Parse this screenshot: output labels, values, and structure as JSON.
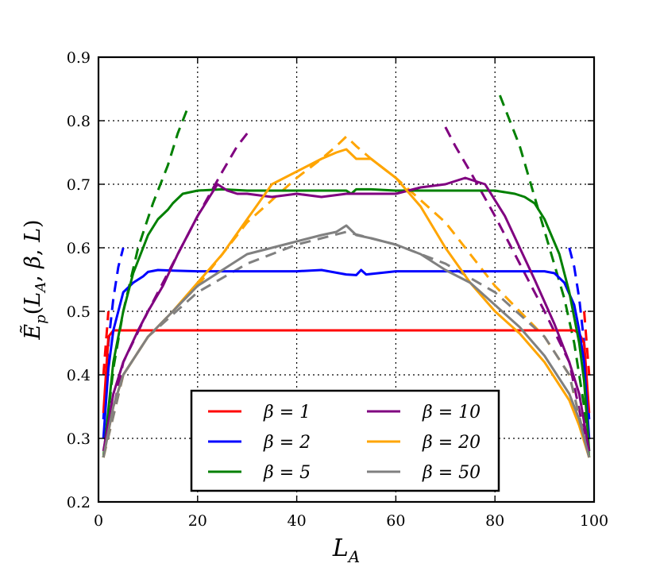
{
  "chart_data": {
    "type": "line",
    "title": "",
    "xlabel": "L_A",
    "ylabel": "Ẽ_p(L_A, β, L)",
    "xlim": [
      0,
      100
    ],
    "ylim": [
      0.2,
      0.9
    ],
    "x_ticks": [
      "0",
      "20",
      "40",
      "60",
      "80",
      "100"
    ],
    "y_ticks": [
      "0.2",
      "0.3",
      "0.4",
      "0.5",
      "0.6",
      "0.7",
      "0.8",
      "0.9"
    ],
    "grid": true,
    "legend_position": "bottom-center",
    "series": [
      {
        "name": "β = 1",
        "color": "#ff0000",
        "x": [
          1,
          2,
          3,
          4,
          6,
          10,
          20,
          30,
          40,
          50,
          60,
          70,
          80,
          90,
          94,
          96,
          97,
          98,
          99
        ],
        "values": [
          0.34,
          0.46,
          0.47,
          0.47,
          0.47,
          0.47,
          0.47,
          0.47,
          0.47,
          0.47,
          0.47,
          0.47,
          0.47,
          0.47,
          0.47,
          0.47,
          0.465,
          0.45,
          0.34
        ]
      },
      {
        "name": "β = 2",
        "color": "#0000ff",
        "x": [
          1,
          2,
          3,
          5,
          7,
          9,
          10,
          12,
          15,
          20,
          30,
          40,
          45,
          50,
          52,
          53,
          54,
          60,
          70,
          80,
          90,
          92,
          94,
          96,
          97,
          98,
          99
        ],
        "values": [
          0.3,
          0.41,
          0.47,
          0.53,
          0.545,
          0.555,
          0.562,
          0.565,
          0.564,
          0.563,
          0.563,
          0.563,
          0.565,
          0.558,
          0.557,
          0.565,
          0.558,
          0.563,
          0.563,
          0.563,
          0.563,
          0.56,
          0.545,
          0.51,
          0.47,
          0.42,
          0.3
        ]
      },
      {
        "name": "β = 5",
        "color": "#008000",
        "x": [
          1,
          3,
          5,
          7,
          9,
          10,
          12,
          14,
          15,
          17,
          20,
          25,
          30,
          40,
          45,
          50,
          51,
          52,
          55,
          60,
          70,
          80,
          84,
          86,
          88,
          90,
          93,
          95,
          97,
          98,
          99
        ],
        "values": [
          0.27,
          0.42,
          0.5,
          0.56,
          0.6,
          0.62,
          0.645,
          0.66,
          0.67,
          0.685,
          0.69,
          0.692,
          0.69,
          0.69,
          0.69,
          0.69,
          0.685,
          0.692,
          0.692,
          0.69,
          0.69,
          0.69,
          0.685,
          0.68,
          0.67,
          0.645,
          0.59,
          0.53,
          0.45,
          0.39,
          0.28
        ]
      },
      {
        "name": "β = 10",
        "color": "#800080",
        "x": [
          1,
          3,
          5,
          8,
          10,
          13,
          16,
          20,
          22,
          24,
          26,
          28,
          30,
          35,
          40,
          45,
          50,
          55,
          60,
          65,
          70,
          72,
          74,
          76,
          78,
          80,
          82,
          85,
          88,
          92,
          95,
          97,
          99
        ],
        "values": [
          0.28,
          0.37,
          0.42,
          0.47,
          0.5,
          0.54,
          0.59,
          0.65,
          0.675,
          0.7,
          0.69,
          0.685,
          0.685,
          0.68,
          0.685,
          0.68,
          0.685,
          0.685,
          0.685,
          0.695,
          0.7,
          0.705,
          0.71,
          0.705,
          0.7,
          0.675,
          0.65,
          0.6,
          0.55,
          0.48,
          0.42,
          0.37,
          0.28
        ]
      },
      {
        "name": "β = 20",
        "color": "#ffa500",
        "x": [
          1,
          3,
          5,
          10,
          15,
          20,
          25,
          30,
          35,
          40,
          45,
          48,
          50,
          52,
          55,
          60,
          65,
          70,
          75,
          80,
          85,
          90,
          95,
          97,
          99
        ],
        "values": [
          0.27,
          0.35,
          0.4,
          0.46,
          0.5,
          0.545,
          0.59,
          0.645,
          0.7,
          0.72,
          0.74,
          0.75,
          0.755,
          0.74,
          0.74,
          0.71,
          0.665,
          0.6,
          0.545,
          0.5,
          0.465,
          0.42,
          0.36,
          0.32,
          0.27
        ]
      },
      {
        "name": "β = 50",
        "color": "#808080",
        "x": [
          1,
          3,
          5,
          10,
          15,
          20,
          25,
          30,
          35,
          40,
          45,
          48,
          50,
          52,
          55,
          60,
          65,
          70,
          75,
          80,
          85,
          90,
          95,
          97,
          99
        ],
        "values": [
          0.27,
          0.35,
          0.4,
          0.46,
          0.5,
          0.54,
          0.565,
          0.59,
          0.6,
          0.61,
          0.62,
          0.625,
          0.635,
          0.62,
          0.615,
          0.605,
          0.59,
          0.565,
          0.545,
          0.51,
          0.475,
          0.43,
          0.37,
          0.33,
          0.27
        ]
      }
    ],
    "dashed_series": [
      {
        "name": "β = 1 fit",
        "color": "#ff0000",
        "segments": [
          {
            "x": [
              1,
              2
            ],
            "values": [
              0.4,
              0.5
            ]
          },
          {
            "x": [
              98,
              99
            ],
            "values": [
              0.5,
              0.4
            ]
          }
        ]
      },
      {
        "name": "β = 2 fit",
        "color": "#0000ff",
        "segments": [
          {
            "x": [
              1,
              2,
              3,
              4,
              5
            ],
            "values": [
              0.33,
              0.45,
              0.52,
              0.57,
              0.6
            ]
          },
          {
            "x": [
              95,
              96,
              97,
              98,
              99
            ],
            "values": [
              0.6,
              0.57,
              0.52,
              0.45,
              0.33
            ]
          }
        ]
      },
      {
        "name": "β = 5 fit",
        "color": "#008000",
        "segments": [
          {
            "x": [
              1,
              3,
              5,
              8,
              11,
              14,
              16,
              18
            ],
            "values": [
              0.27,
              0.41,
              0.5,
              0.6,
              0.67,
              0.73,
              0.78,
              0.82
            ]
          },
          {
            "x": [
              81,
              83,
              85,
              88,
              91,
              94,
              96,
              98,
              99
            ],
            "values": [
              0.84,
              0.8,
              0.76,
              0.68,
              0.6,
              0.52,
              0.45,
              0.35,
              0.27
            ]
          }
        ]
      },
      {
        "name": "β = 10 fit",
        "color": "#800080",
        "segments": [
          {
            "x": [
              1,
              5,
              10,
              15,
              20,
              25,
              28,
              30
            ],
            "values": [
              0.27,
              0.42,
              0.5,
              0.575,
              0.65,
              0.72,
              0.76,
              0.78
            ]
          },
          {
            "x": [
              70,
              72,
              75,
              80,
              85,
              90,
              95,
              99
            ],
            "values": [
              0.79,
              0.76,
              0.72,
              0.65,
              0.575,
              0.5,
              0.42,
              0.27
            ]
          }
        ]
      },
      {
        "name": "β = 20 fit",
        "color": "#ffa500",
        "segments": [
          {
            "x": [
              1,
              5,
              10,
              20,
              30,
              40,
              45,
              48,
              50,
              52,
              55,
              60,
              70,
              80,
              90,
              95,
              99
            ],
            "values": [
              0.27,
              0.4,
              0.46,
              0.54,
              0.64,
              0.71,
              0.74,
              0.76,
              0.775,
              0.76,
              0.74,
              0.71,
              0.64,
              0.54,
              0.46,
              0.4,
              0.27
            ]
          }
        ]
      },
      {
        "name": "β = 50 fit",
        "color": "#808080",
        "segments": [
          {
            "x": [
              1,
              5,
              10,
              20,
              30,
              40,
              45,
              50,
              55,
              60,
              70,
              80,
              90,
              95,
              99
            ],
            "values": [
              0.27,
              0.4,
              0.46,
              0.53,
              0.575,
              0.605,
              0.615,
              0.625,
              0.615,
              0.605,
              0.575,
              0.53,
              0.46,
              0.4,
              0.27
            ]
          }
        ]
      }
    ],
    "legend": [
      {
        "label": "β = 1",
        "color": "#ff0000"
      },
      {
        "label": "β = 10",
        "color": "#800080"
      },
      {
        "label": "β = 2",
        "color": "#0000ff"
      },
      {
        "label": "β = 20",
        "color": "#ffa500"
      },
      {
        "label": "β = 5",
        "color": "#008000"
      },
      {
        "label": "β = 50",
        "color": "#808080"
      }
    ]
  }
}
